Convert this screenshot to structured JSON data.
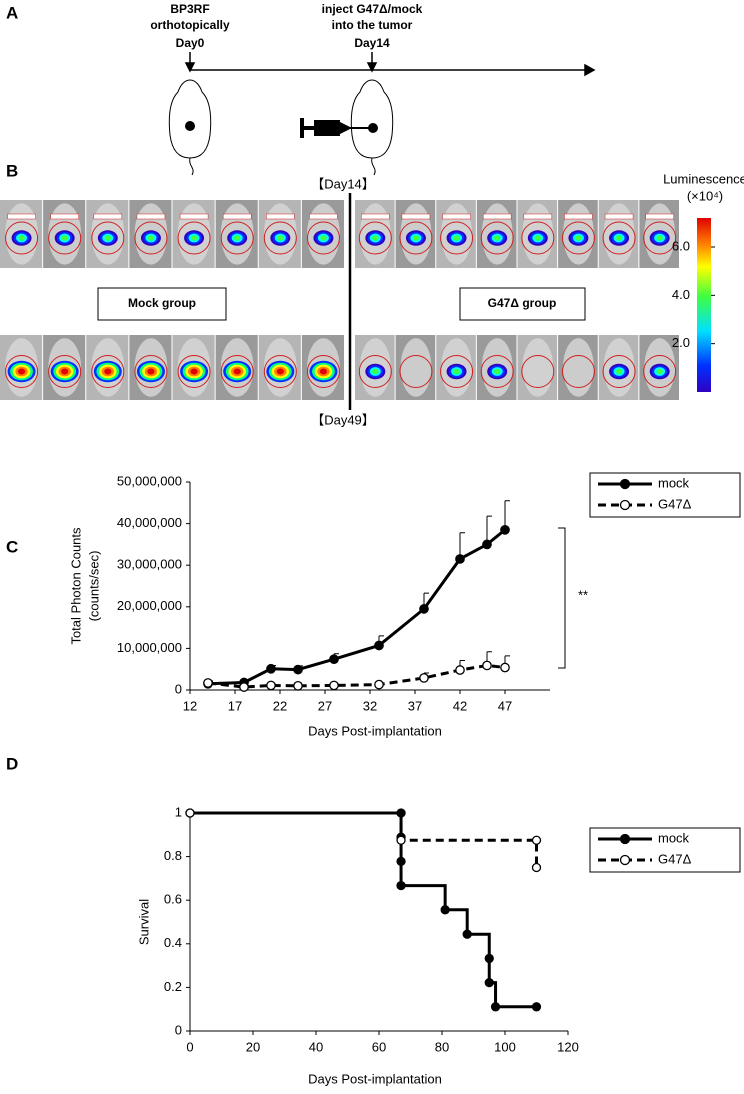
{
  "panel_a": {
    "label": "A",
    "events": [
      {
        "lines": [
          "BP3RF",
          "orthotopically"
        ],
        "day": "Day0"
      },
      {
        "lines": [
          "inject G47Δ/mock",
          "into the tumor"
        ],
        "day": "Day14"
      }
    ]
  },
  "panel_b": {
    "label": "B",
    "top_label": "【Day14】",
    "bottom_label": "【Day49】",
    "groups": [
      "Mock group",
      "G47Δ group"
    ],
    "colorbar": {
      "title": "Luminescence",
      "unit": "(×10⁴)",
      "range": [
        0,
        7.2
      ],
      "ticks": [
        {
          "value": 6,
          "label": "6.0"
        },
        {
          "value": 4,
          "label": "4.0"
        },
        {
          "value": 2,
          "label": "2.0"
        }
      ]
    }
  },
  "panel_labels": [
    "C",
    "D"
  ],
  "chart_data": [
    {
      "type": "line",
      "ylabel": [
        "Total Photon Counts",
        "(counts/sec)"
      ],
      "xlabel": "Days Post-implantation",
      "annotation": "**",
      "xlim": [
        12,
        52
      ],
      "xticks": [
        12,
        17,
        22,
        27,
        32,
        37,
        42,
        47
      ],
      "ylim": [
        0,
        50000000
      ],
      "yticks": [
        {
          "value": 0,
          "label": "0"
        },
        {
          "value": 10000000,
          "label": "10,000,000"
        },
        {
          "value": 20000000,
          "label": "20,000,000"
        },
        {
          "value": 30000000,
          "label": "30,000,000"
        },
        {
          "value": 40000000,
          "label": "40,000,000"
        },
        {
          "value": 50000000,
          "label": "50,000,000"
        }
      ],
      "series": [
        {
          "name": "mock",
          "color": "#000000",
          "line_style": "solid",
          "marker": "filled",
          "x": [
            14,
            18,
            21,
            24,
            28,
            33,
            38,
            42,
            45,
            47
          ],
          "values": [
            1500000,
            1800000,
            5100000,
            4900000,
            7400000,
            10700000,
            19500000,
            31500000,
            35000000,
            38500000
          ],
          "errors": [
            500000,
            400000,
            800000,
            900000,
            1300000,
            2300000,
            3800000,
            6300000,
            6800000,
            7000000
          ]
        },
        {
          "name": "G47Δ",
          "color": "#000000",
          "line_style": "dashed",
          "marker": "open",
          "x": [
            14,
            18,
            21,
            24,
            28,
            33,
            38,
            42,
            45,
            47
          ],
          "values": [
            1700000,
            700000,
            1100000,
            1000000,
            1100000,
            1300000,
            2900000,
            4800000,
            5900000,
            5400000
          ],
          "errors": [
            500000,
            300000,
            300000,
            200000,
            300000,
            300000,
            1200000,
            2300000,
            3300000,
            2800000
          ]
        }
      ]
    },
    {
      "type": "step",
      "ylabel": "Survival",
      "xlabel": "Days Post-implantation",
      "xlim": [
        0,
        120
      ],
      "xticks": [
        0,
        20,
        40,
        60,
        80,
        100,
        120
      ],
      "ylim": [
        0,
        1
      ],
      "yticks": [
        0,
        0.2,
        0.4,
        0.6,
        0.8,
        1
      ],
      "series": [
        {
          "name": "mock",
          "color": "#000000",
          "line_style": "solid",
          "marker": "filled",
          "x": [
            0,
            67,
            67,
            67,
            67,
            81,
            88,
            95,
            95,
            97,
            110
          ],
          "values": [
            1,
            1,
            0.889,
            0.778,
            0.667,
            0.556,
            0.444,
            0.333,
            0.222,
            0.111,
            0.111
          ]
        },
        {
          "name": "G47Δ",
          "color": "#000000",
          "line_style": "dashed",
          "marker": "open",
          "x": [
            0,
            67,
            110,
            110
          ],
          "values": [
            1,
            0.875,
            0.875,
            0.75
          ]
        }
      ]
    }
  ]
}
